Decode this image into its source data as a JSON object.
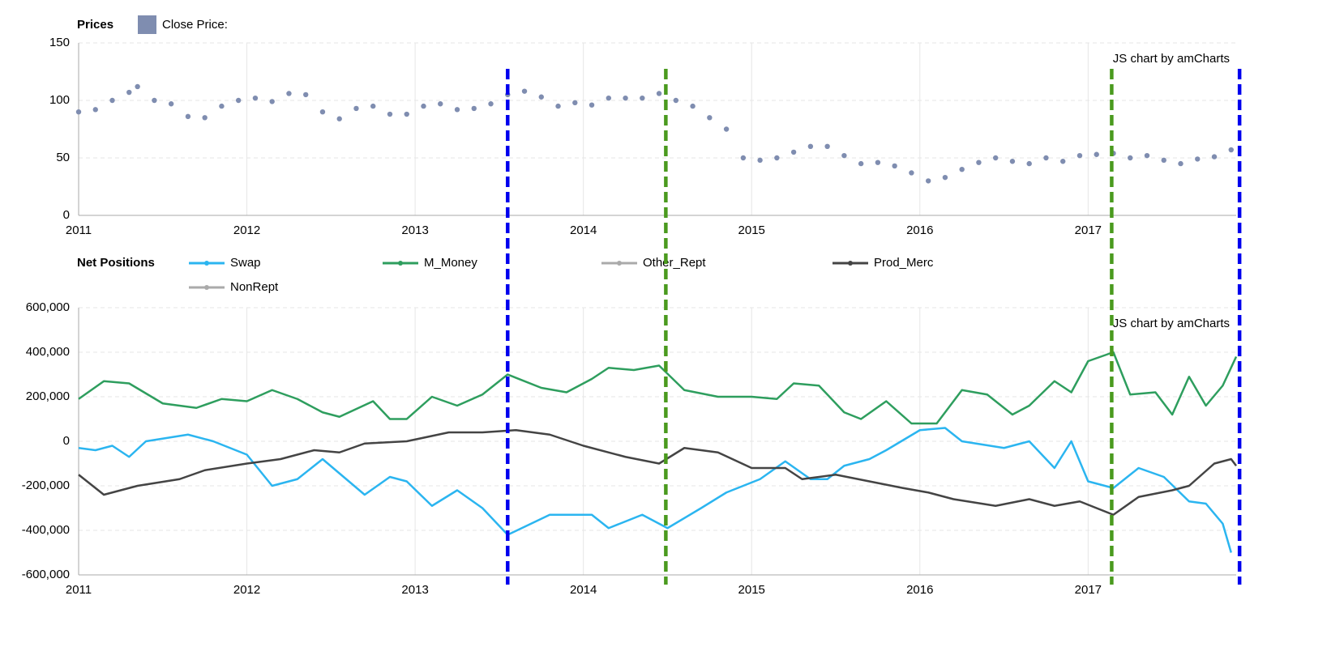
{
  "chart_data": [
    {
      "type": "scatter",
      "title": "Prices",
      "credit": "JS chart by amCharts",
      "xlim": [
        2011,
        2017.88
      ],
      "xticks": [
        2011,
        2012,
        2013,
        2014,
        2015,
        2016,
        2017
      ],
      "ylim": [
        0,
        150
      ],
      "yticks": [
        0,
        50,
        100,
        150
      ],
      "grid": true,
      "series": [
        {
          "name": "Close Price:",
          "color": "#7f8db0",
          "x": [
            2011.0,
            2011.1,
            2011.2,
            2011.3,
            2011.35,
            2011.45,
            2011.55,
            2011.65,
            2011.75,
            2011.85,
            2011.95,
            2012.05,
            2012.15,
            2012.25,
            2012.35,
            2012.45,
            2012.55,
            2012.65,
            2012.75,
            2012.85,
            2012.95,
            2013.05,
            2013.15,
            2013.25,
            2013.35,
            2013.45,
            2013.55,
            2013.65,
            2013.75,
            2013.85,
            2013.95,
            2014.05,
            2014.15,
            2014.25,
            2014.35,
            2014.45,
            2014.55,
            2014.65,
            2014.75,
            2014.85,
            2014.95,
            2015.05,
            2015.15,
            2015.25,
            2015.35,
            2015.45,
            2015.55,
            2015.65,
            2015.75,
            2015.85,
            2015.95,
            2016.05,
            2016.15,
            2016.25,
            2016.35,
            2016.45,
            2016.55,
            2016.65,
            2016.75,
            2016.85,
            2016.95,
            2017.05,
            2017.15,
            2017.25,
            2017.35,
            2017.45,
            2017.55,
            2017.65,
            2017.75,
            2017.85
          ],
          "values": [
            90,
            92,
            100,
            107,
            112,
            100,
            97,
            86,
            85,
            95,
            100,
            102,
            99,
            106,
            105,
            90,
            84,
            93,
            95,
            88,
            88,
            95,
            97,
            92,
            93,
            97,
            105,
            108,
            103,
            95,
            98,
            96,
            102,
            102,
            102,
            106,
            100,
            95,
            85,
            75,
            50,
            48,
            50,
            55,
            60,
            60,
            52,
            45,
            46,
            43,
            37,
            30,
            33,
            40,
            46,
            50,
            47,
            45,
            50,
            47,
            52,
            53,
            54,
            50,
            52,
            48,
            45,
            49,
            51,
            57
          ]
        }
      ]
    },
    {
      "type": "line",
      "title": "Net Positions",
      "credit": "JS chart by amCharts",
      "xlim": [
        2011,
        2017.88
      ],
      "xticks": [
        2011,
        2012,
        2013,
        2014,
        2015,
        2016,
        2017
      ],
      "ylim": [
        -600000,
        600000
      ],
      "yticks": [
        {
          "value": -600000,
          "label": "-600,000"
        },
        {
          "value": -400000,
          "label": "-400,000"
        },
        {
          "value": -200000,
          "label": "-200,000"
        },
        0,
        {
          "value": 200000,
          "label": "200,000"
        },
        {
          "value": 400000,
          "label": "400,000"
        },
        {
          "value": 600000,
          "label": "600,000"
        }
      ],
      "grid": true,
      "series": [
        {
          "name": "Swap",
          "color": "#2bb5f0",
          "x": [
            2011.0,
            2011.1,
            2011.2,
            2011.3,
            2011.4,
            2011.65,
            2011.8,
            2012.0,
            2012.15,
            2012.3,
            2012.45,
            2012.7,
            2012.85,
            2012.95,
            2013.1,
            2013.25,
            2013.4,
            2013.55,
            2013.8,
            2014.05,
            2014.15,
            2014.35,
            2014.5,
            2014.7,
            2014.85,
            2015.05,
            2015.2,
            2015.35,
            2015.45,
            2015.55,
            2015.7,
            2015.8,
            2016.0,
            2016.15,
            2016.25,
            2016.5,
            2016.65,
            2016.8,
            2016.9,
            2017.0,
            2017.15,
            2017.3,
            2017.45,
            2017.6,
            2017.7,
            2017.8,
            2017.85
          ],
          "values": [
            -30000,
            -40000,
            -20000,
            -70000,
            0,
            30000,
            0,
            -60000,
            -200000,
            -170000,
            -80000,
            -240000,
            -160000,
            -180000,
            -290000,
            -220000,
            -300000,
            -420000,
            -330000,
            -330000,
            -390000,
            -330000,
            -390000,
            -300000,
            -230000,
            -170000,
            -90000,
            -170000,
            -170000,
            -110000,
            -80000,
            -40000,
            50000,
            60000,
            0,
            -30000,
            0,
            -120000,
            0,
            -180000,
            -210000,
            -120000,
            -160000,
            -270000,
            -280000,
            -370000,
            -500000
          ]
        },
        {
          "name": "M_Money",
          "color": "#2e9e5e",
          "x": [
            2011.0,
            2011.15,
            2011.3,
            2011.5,
            2011.7,
            2011.85,
            2012.0,
            2012.15,
            2012.3,
            2012.45,
            2012.55,
            2012.75,
            2012.85,
            2012.95,
            2013.1,
            2013.25,
            2013.4,
            2013.55,
            2013.75,
            2013.9,
            2014.05,
            2014.15,
            2014.3,
            2014.45,
            2014.6,
            2014.8,
            2015.0,
            2015.15,
            2015.25,
            2015.4,
            2015.55,
            2015.65,
            2015.8,
            2015.95,
            2016.1,
            2016.25,
            2016.4,
            2016.55,
            2016.65,
            2016.8,
            2016.9,
            2017.0,
            2017.15,
            2017.25,
            2017.4,
            2017.5,
            2017.6,
            2017.7,
            2017.8,
            2017.88
          ],
          "values": [
            190000,
            270000,
            260000,
            170000,
            150000,
            190000,
            180000,
            230000,
            190000,
            130000,
            110000,
            180000,
            100000,
            100000,
            200000,
            160000,
            210000,
            300000,
            240000,
            220000,
            280000,
            330000,
            320000,
            340000,
            230000,
            200000,
            200000,
            190000,
            260000,
            250000,
            130000,
            100000,
            180000,
            80000,
            80000,
            230000,
            210000,
            120000,
            160000,
            270000,
            220000,
            360000,
            400000,
            210000,
            220000,
            120000,
            290000,
            160000,
            250000,
            380000
          ]
        },
        {
          "name": "Other_Rept",
          "color": "#aaaaaa",
          "hidden": true
        },
        {
          "name": "Prod_Merc",
          "color": "#444444",
          "x": [
            2011.0,
            2011.15,
            2011.35,
            2011.6,
            2011.75,
            2012.0,
            2012.2,
            2012.4,
            2012.55,
            2012.7,
            2012.95,
            2013.2,
            2013.4,
            2013.6,
            2013.8,
            2014.0,
            2014.25,
            2014.45,
            2014.6,
            2014.8,
            2015.0,
            2015.2,
            2015.3,
            2015.5,
            2015.7,
            2015.9,
            2016.05,
            2016.2,
            2016.45,
            2016.65,
            2016.8,
            2016.95,
            2017.15,
            2017.3,
            2017.5,
            2017.6,
            2017.75,
            2017.85,
            2017.88
          ],
          "values": [
            -150000,
            -240000,
            -200000,
            -170000,
            -130000,
            -100000,
            -80000,
            -40000,
            -50000,
            -10000,
            0,
            40000,
            40000,
            50000,
            30000,
            -20000,
            -70000,
            -100000,
            -30000,
            -50000,
            -120000,
            -120000,
            -170000,
            -150000,
            -180000,
            -210000,
            -230000,
            -260000,
            -290000,
            -260000,
            -290000,
            -270000,
            -330000,
            -250000,
            -220000,
            -200000,
            -100000,
            -80000,
            -110000
          ]
        },
        {
          "name": "NonRept",
          "color": "#aaaaaa",
          "hidden": true
        }
      ]
    }
  ],
  "annotation_lines": [
    {
      "x": 2013.55,
      "color": "#0000ee"
    },
    {
      "x": 2014.49,
      "color": "#4a9a1e"
    },
    {
      "x": 2017.14,
      "color": "#4a9a1e"
    },
    {
      "x": 2017.9,
      "color": "#0000ee"
    }
  ]
}
